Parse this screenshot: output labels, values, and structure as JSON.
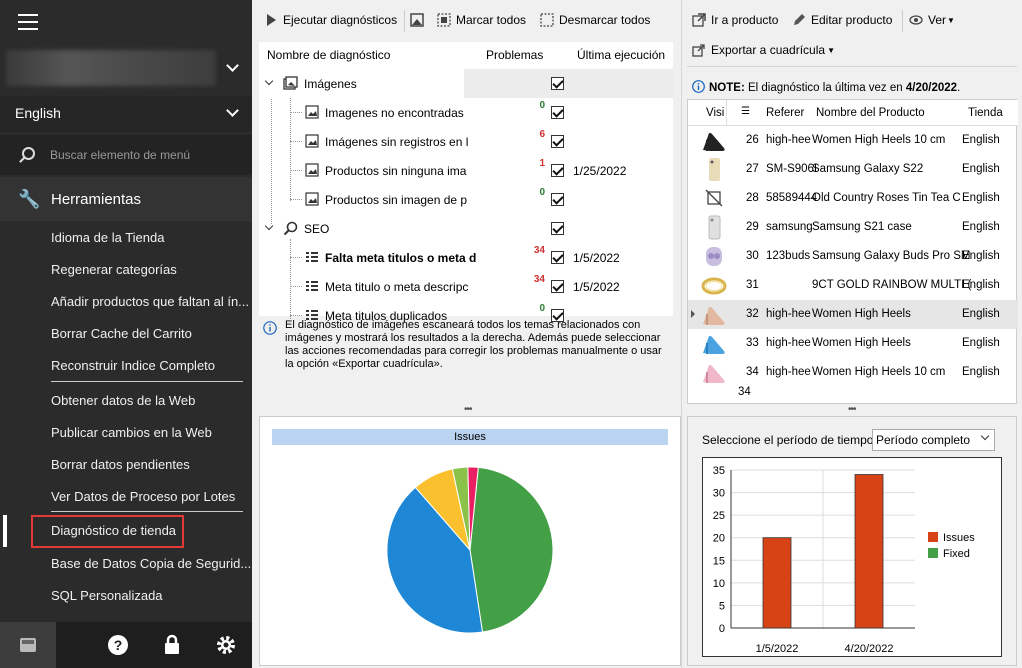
{
  "sidebar": {
    "language": "English",
    "search_placeholder": "Buscar elemento de menú",
    "section_title": "Herramientas",
    "items": [
      "Idioma de la Tienda",
      "Regenerar categorías",
      "Añadir productos que faltan al ín...",
      "Borrar Cache del Carrito",
      "Reconstruir Indice Completo",
      "Obtener datos de la Web",
      "Publicar cambios en la Web",
      "Borrar datos pendientes",
      "Ver Datos de Proceso por Lotes",
      "Diagnóstico de tienda",
      "Base de Datos Copia de Segurid...",
      "SQL Personalizada"
    ]
  },
  "toolbar_left": {
    "run": "Ejecutar diagnósticos",
    "mark_all": "Marcar todos",
    "unmark_all": "Desmarcar todos"
  },
  "toolbar_right": {
    "goto": "Ir a producto",
    "edit": "Editar producto",
    "view": "Ver",
    "export": "Exportar a cuadrícula"
  },
  "tree": {
    "headers": {
      "name": "Nombre de diagnóstico",
      "problems": "Problemas",
      "last_run": "Última ejecución"
    },
    "rows": [
      {
        "name": "Imágenes",
        "problems": "",
        "date": "",
        "level": 0,
        "bold": false
      },
      {
        "name": "Imagenes no encontradas",
        "problems": "0",
        "date": "",
        "level": 1,
        "bold": false
      },
      {
        "name": "Imágenes sin registros en l",
        "problems": "6",
        "date": "",
        "level": 1,
        "bold": false
      },
      {
        "name": "Productos sin ninguna ima",
        "problems": "1",
        "date": "1/25/2022",
        "level": 1,
        "bold": false
      },
      {
        "name": "Productos sin imagen de p",
        "problems": "0",
        "date": "",
        "level": 1,
        "bold": false
      },
      {
        "name": "SEO",
        "problems": "",
        "date": "",
        "level": 0,
        "bold": false
      },
      {
        "name": "Falta meta titulos o meta d",
        "problems": "34",
        "date": "1/5/2022",
        "level": 1,
        "bold": true
      },
      {
        "name": "Meta titulo o meta descripc",
        "problems": "34",
        "date": "1/5/2022",
        "level": 1,
        "bold": false
      },
      {
        "name": "Meta titulos duplicados",
        "problems": "0",
        "date": "",
        "level": 1,
        "bold": false
      }
    ]
  },
  "info_text": "El diagnóstico de imágenes escaneará todos los temas relacionados con imágenes y mostrará los resultados a la derecha. Además puede seleccionar las acciones recomendadas para corregir los problemas manualmente o usar la opción «Exportar cuadrícula».",
  "note": {
    "label": "NOTE:",
    "text": " El diagnóstico la última vez en ",
    "date": "4/20/2022",
    "end": "."
  },
  "grid": {
    "headers": [
      "Visi",
      "Referer",
      "Nombre del Producto",
      "Tienda"
    ],
    "rows": [
      {
        "id": "26",
        "ref": "high-hee",
        "name": "Women High Heels 10 cm",
        "store": "English",
        "thumb": "heel-black"
      },
      {
        "id": "27",
        "ref": "SM-S906I",
        "name": "Samsung Galaxy S22",
        "store": "English",
        "thumb": "phone-gold"
      },
      {
        "id": "28",
        "ref": "58589444",
        "name": "Old Country Roses Tin Tea C",
        "store": "English",
        "thumb": "no-image"
      },
      {
        "id": "29",
        "ref": "samsung",
        "name": "Samsung S21 case",
        "store": "English",
        "thumb": "case"
      },
      {
        "id": "30",
        "ref": "123buds",
        "name": "Samsung Galaxy Buds Pro SM",
        "store": "English",
        "thumb": "buds"
      },
      {
        "id": "31",
        "ref": "",
        "name": "9CT GOLD RAINBOW MULTI (",
        "store": "English",
        "thumb": "ring"
      },
      {
        "id": "32",
        "ref": "high-hee",
        "name": "Women High Heels",
        "store": "English",
        "thumb": "heel-nude"
      },
      {
        "id": "33",
        "ref": "high-hee",
        "name": "Women High Heels",
        "store": "English",
        "thumb": "heel-blue"
      },
      {
        "id": "34",
        "ref": "high-hee",
        "name": "Women High Heels 10 cm",
        "store": "English",
        "thumb": "heel-pink"
      }
    ],
    "footer_count": "34"
  },
  "period": {
    "label": "Seleccione el período de tiempo",
    "value": "Período completo"
  },
  "pie": {
    "title": "Issues",
    "slices": [
      {
        "value": 46,
        "color": "#43a047"
      },
      {
        "value": 41,
        "color": "#1e88d6"
      },
      {
        "value": 8,
        "color": "#fbc02d"
      },
      {
        "value": 3,
        "color": "#8bc34a"
      },
      {
        "value": 2,
        "color": "#e91e63"
      }
    ]
  },
  "chart_data": {
    "type": "bar",
    "categories": [
      "1/5/2022",
      "4/20/2022"
    ],
    "series": [
      {
        "name": "Issues",
        "values": [
          20,
          34
        ],
        "color": "#d84315"
      },
      {
        "name": "Fixed",
        "values": [
          0,
          0
        ],
        "color": "#43a047"
      }
    ],
    "ylim": [
      0,
      35
    ],
    "yticks": [
      "0",
      "5",
      "10",
      "15",
      "20",
      "25",
      "30",
      "35"
    ],
    "legend": "right",
    "grid": true
  }
}
